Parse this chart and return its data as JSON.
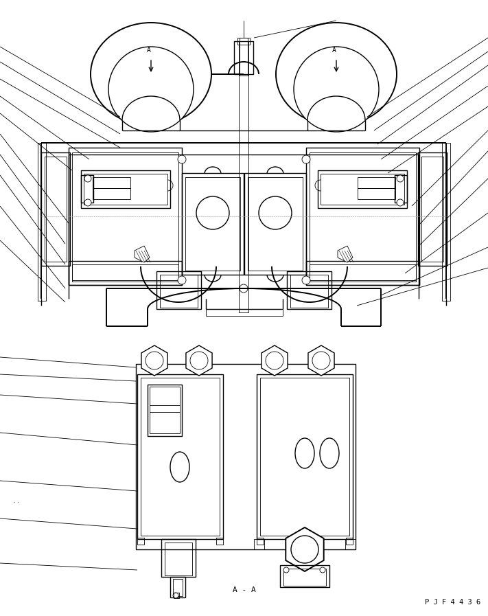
{
  "bg_color": "#ffffff",
  "line_color": "#000000",
  "lw_main": 1.0,
  "lw_thin": 0.6,
  "lw_thick": 1.4,
  "title_aa": "A - A",
  "label_pjf": "P J F 4 4 3 6",
  "fig_width": 7.11,
  "fig_height": 8.97
}
